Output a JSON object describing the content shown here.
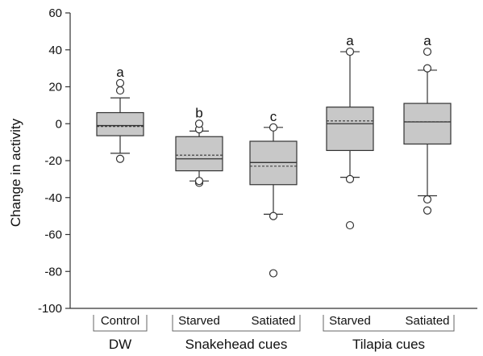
{
  "chart_data": {
    "type": "box",
    "ylabel": "Change in activity",
    "ylim": [
      -100,
      60
    ],
    "yticks": [
      60,
      40,
      20,
      0,
      -20,
      -40,
      -60,
      -80,
      -100
    ],
    "grid": false,
    "colors": {
      "box_fill": "#c8c8c8",
      "stroke": "#333333"
    },
    "categories": [
      "Control",
      "Starved",
      "Satiated",
      "Starved",
      "Satiated"
    ],
    "groups": [
      {
        "label": "DW",
        "members": [
          0
        ]
      },
      {
        "label": "Snakehead cues",
        "members": [
          1,
          2
        ]
      },
      {
        "label": "Tilapia cues",
        "members": [
          3,
          4
        ]
      }
    ],
    "boxes": [
      {
        "category": "Control",
        "group": "DW",
        "min": -16,
        "q1": -6.5,
        "median": -1,
        "mean": -1.5,
        "q3": 6,
        "max": 14,
        "outliers": [
          -19,
          18,
          22
        ],
        "sig": "a"
      },
      {
        "category": "Starved",
        "group": "Snakehead cues",
        "min": -31,
        "q1": -25.5,
        "median": -19,
        "mean": -17,
        "q3": -7,
        "max": -4,
        "outliers": [
          -32,
          -31,
          -3,
          0
        ],
        "sig": "b"
      },
      {
        "category": "Satiated",
        "group": "Snakehead cues",
        "min": -49,
        "q1": -33,
        "median": -21,
        "mean": -23,
        "q3": -9.5,
        "max": -2,
        "outliers": [
          -50,
          -81,
          -2
        ],
        "sig": "c"
      },
      {
        "category": "Starved",
        "group": "Tilapia cues",
        "min": -29,
        "q1": -14.5,
        "median": 0,
        "mean": 1.5,
        "q3": 9,
        "max": 39,
        "outliers": [
          -30,
          -55,
          39
        ],
        "sig": "a"
      },
      {
        "category": "Satiated",
        "group": "Tilapia cues",
        "min": -39,
        "q1": -11,
        "median": 1,
        "mean": 1,
        "q3": 11,
        "max": 29,
        "outliers": [
          -41,
          -47,
          30,
          39
        ],
        "sig": "a"
      }
    ]
  }
}
